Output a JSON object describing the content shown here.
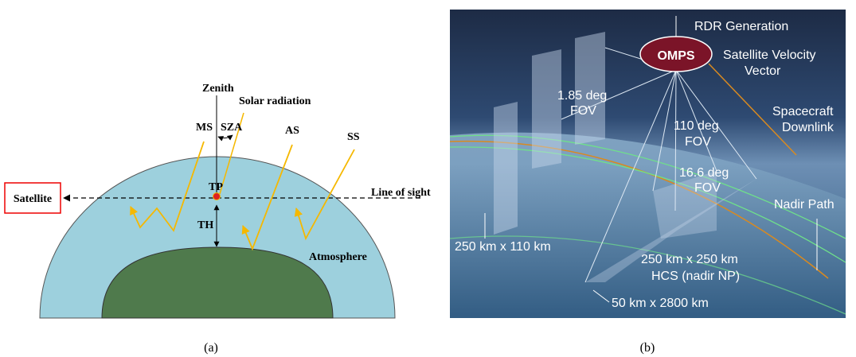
{
  "panel_a": {
    "zenith": "Zenith",
    "solar_radiation": "Solar radiation",
    "ms": "MS",
    "sza": "SZA",
    "as": "AS",
    "ss": "SS",
    "tp": "TP",
    "satellite": "Satellite",
    "line_of_sight": "Line of sight",
    "th": "TH",
    "atmosphere": "Atmosphere",
    "caption": "(a)"
  },
  "panel_b": {
    "rdr_generation": "RDR Generation",
    "omps": "OMPS",
    "satellite_velocity": [
      "Satellite Velocity",
      "Vector"
    ],
    "fov_185": [
      "1.85 deg",
      "FOV"
    ],
    "spacecraft_downlink": [
      "Spacecraft",
      "Downlink"
    ],
    "fov_110": [
      "110 deg",
      "FOV"
    ],
    "fov_166": [
      "16.6 deg",
      "FOV"
    ],
    "nadir_path": "Nadir Path",
    "size_250x110": "250 km x 110 km",
    "size_250x250": "250 km x 250 km",
    "hcs": "HCS (nadir NP)",
    "size_50x2800": "50 km x 2800 km",
    "caption": "(b)"
  }
}
